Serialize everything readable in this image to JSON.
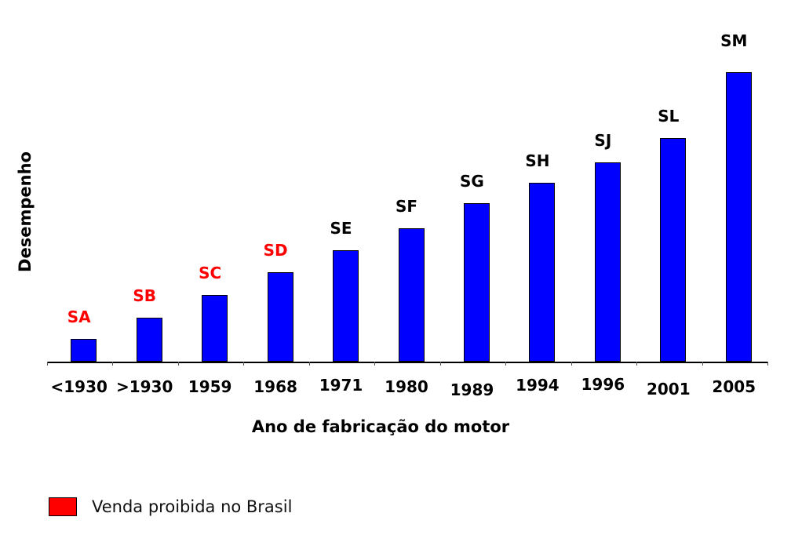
{
  "chart_data": {
    "type": "bar",
    "title": "",
    "xlabel": "Ano de fabricação do motor",
    "ylabel": "Desempenho",
    "categories": [
      "<1930",
      ">1930",
      "1959",
      "1968",
      "1971",
      "1980",
      "1989",
      "1994",
      "1996",
      "2001",
      "2005"
    ],
    "bar_labels": [
      "SA",
      "SB",
      "SC",
      "SD",
      "SE",
      "SF",
      "SG",
      "SH",
      "SJ",
      "SL",
      "SM"
    ],
    "values": [
      29,
      56,
      85,
      114,
      142,
      170,
      202,
      228,
      254,
      285,
      369
    ],
    "value_units": "relative (no y-axis scale shown)",
    "label_colors": [
      "#ff0000",
      "#ff0000",
      "#ff0000",
      "#ff0000",
      "#000000",
      "#000000",
      "#000000",
      "#000000",
      "#000000",
      "#000000",
      "#000000"
    ],
    "bar_color": "#0000ff",
    "grid": false,
    "ylim": [
      0,
      380
    ],
    "legend": {
      "position": "bottom-left",
      "entries": [
        {
          "label": "Venda proibida no Brasil",
          "color": "#ff0000"
        }
      ]
    }
  },
  "legend": {
    "label": "Venda proibida no Brasil"
  },
  "axes": {
    "xlabel": "Ano de fabricação do motor",
    "ylabel": "Desempenho"
  }
}
